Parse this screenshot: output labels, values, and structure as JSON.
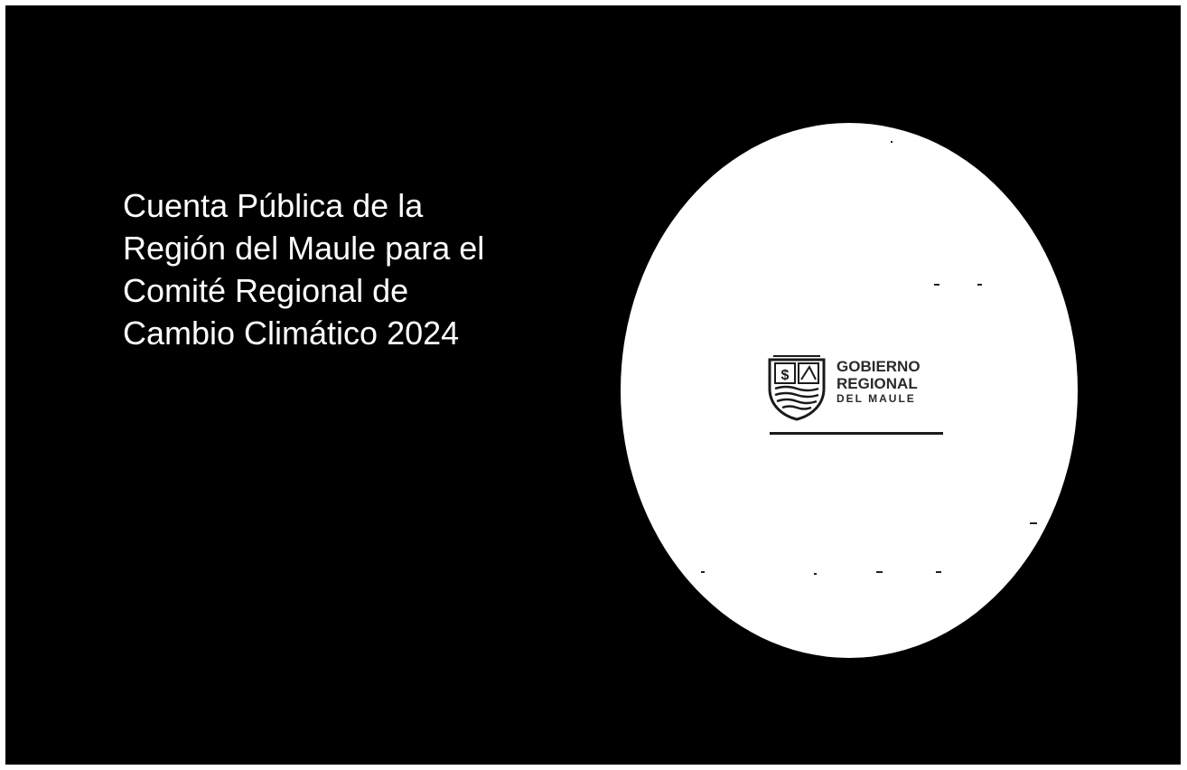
{
  "slide": {
    "title_lines": [
      "Cuenta Pública de la",
      "Región del Maule para el",
      "Comité Regional de",
      "Cambio Climático 2024"
    ]
  },
  "logo": {
    "icon": "regional-crest-icon",
    "line1": "GOBIERNO",
    "line2": "REGIONAL",
    "line3": "DEL MAULE"
  },
  "colors": {
    "background": "#000000",
    "title_text": "#ffffff",
    "oval": "#ffffff",
    "logo_text": "#2a2a2a"
  }
}
